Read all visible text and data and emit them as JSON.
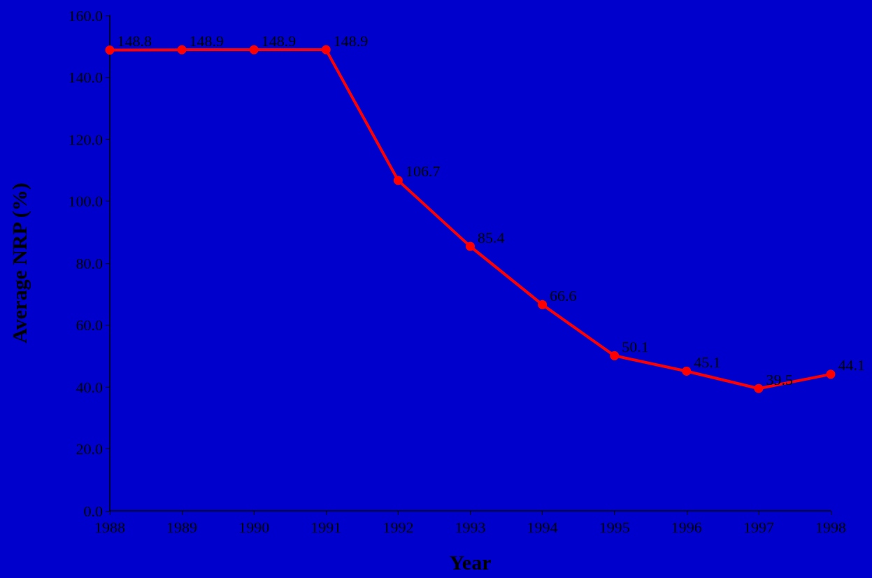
{
  "chart_data": {
    "type": "line",
    "xlabel": "Year",
    "ylabel": "Average NRP (%)",
    "categories": [
      "1988",
      "1989",
      "1990",
      "1991",
      "1992",
      "1993",
      "1994",
      "1995",
      "1996",
      "1997",
      "1998"
    ],
    "series": [
      {
        "color": "#ff0000",
        "values": [
          148.8,
          148.9,
          148.9,
          148.9,
          106.7,
          85.4,
          66.6,
          50.1,
          45.1,
          39.5,
          44.1
        ]
      }
    ],
    "ylim": [
      0,
      160
    ],
    "yticks": [
      {
        "value": 0,
        "label": "0.0"
      },
      {
        "value": 20,
        "label": "20.0"
      },
      {
        "value": 40,
        "label": "40.0"
      },
      {
        "value": 60,
        "label": "60.0"
      },
      {
        "value": 80,
        "label": "80.0"
      },
      {
        "value": 100,
        "label": "100.0"
      },
      {
        "value": 120,
        "label": "120.0"
      },
      {
        "value": 140,
        "label": "140.0"
      },
      {
        "value": 160,
        "label": "160.0"
      }
    ],
    "grid": false,
    "marker": "circle",
    "line_style": "solid",
    "data_labels": true
  }
}
